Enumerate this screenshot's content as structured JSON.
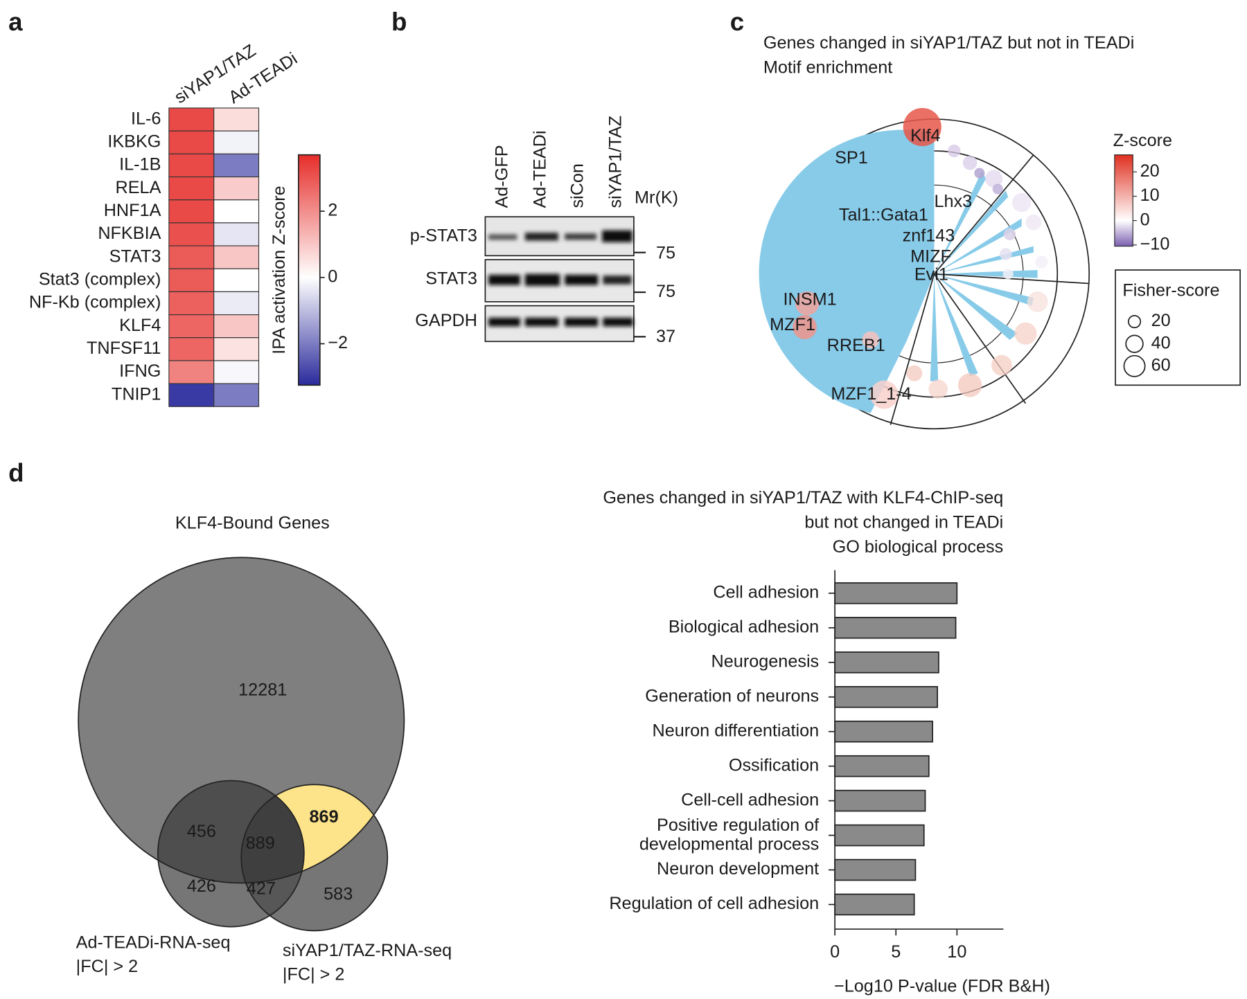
{
  "panel_labels": [
    "a",
    "b",
    "c",
    "d"
  ],
  "chart_data": [
    {
      "type": "heatmap",
      "columns": [
        "siYAP1/TAZ",
        "Ad-TEADi"
      ],
      "rows": [
        "IL-6",
        "IKBKG",
        "IL-1B",
        "RELA",
        "HNF1A",
        "NFKBIA",
        "STAT3",
        "Stat3 (complex)",
        "NF-Kb (complex)",
        "KLF4",
        "TNFSF11",
        "IFNG",
        "TNIP1"
      ],
      "values": [
        [
          3.2,
          0.6
        ],
        [
          3.2,
          -0.2
        ],
        [
          3.2,
          -2.0
        ],
        [
          3.2,
          0.9
        ],
        [
          3.2,
          0.0
        ],
        [
          3.1,
          -0.4
        ],
        [
          2.9,
          1.0
        ],
        [
          2.9,
          0.0
        ],
        [
          2.8,
          -0.3
        ],
        [
          2.7,
          1.0
        ],
        [
          2.7,
          0.5
        ],
        [
          2.2,
          -0.1
        ],
        [
          -3.0,
          -2.0
        ]
      ],
      "colors": [
        "#2a2a9c",
        "#ffffff",
        "#e62e2a"
      ],
      "colorbar_label": "IPA activation Z-score",
      "clim": [
        -3.25,
        3.7
      ],
      "cticks": [
        2,
        0,
        {
          "value": -2,
          "label": "−2"
        }
      ]
    },
    {
      "type": "motif",
      "title": [
        "Genes changed in siYAP1/TAZ but not in TEADi",
        "Motif enrichment"
      ],
      "motifs": [
        {
          "name": "SP1"
        },
        {
          "name": "Klf4",
          "zscore": 22,
          "fisher": 200
        },
        {
          "name": "Lhx3",
          "zscore": -6,
          "fisher": 15
        },
        {
          "name": "Tal1::Gata1",
          "zscore": -5,
          "fisher": 15
        },
        {
          "name": "znf143",
          "zscore": -3,
          "fisher": 20
        },
        {
          "name": "MIZF",
          "zscore": -2,
          "fisher": 20
        },
        {
          "name": "Evi1",
          "zscore": -1,
          "fisher": 15
        },
        {
          "name": "INSM1",
          "zscore": 12,
          "fisher": 78
        },
        {
          "name": "MZF1",
          "zscore": 14,
          "fisher": 80
        },
        {
          "name": "RREB1",
          "zscore": 8,
          "fisher": 40
        },
        {
          "name": "MZF1_1-4",
          "zscore": 6,
          "fisher": 110
        }
      ],
      "colors": [
        "#7b5fb0",
        "#ffffff",
        "#e03020"
      ],
      "zlabel": "Z-score",
      "zlim": [
        -10.5,
        27
      ],
      "zticks": [
        20,
        10,
        0,
        {
          "value": -10,
          "label": "−10"
        }
      ],
      "size_label": "Fisher-score",
      "size_ticks": [
        20,
        40,
        60
      ]
    },
    {
      "type": "barh",
      "title": [
        "Genes changed in siYAP1/TAZ with KLF4-ChIP-seq",
        "but not changed in TEADi",
        "GO biological process"
      ],
      "categories": [
        "Cell adhesion",
        "Biological adhesion",
        "Neurogenesis",
        "Generation of neurons",
        "Neuron differentiation",
        "Ossification",
        "Cell-cell adhesion",
        "Positive regulation of\ndevelopmental process",
        "Neuron development",
        "Regulation of cell adhesion"
      ],
      "values": [
        10.0,
        9.9,
        8.5,
        8.4,
        8.0,
        7.7,
        7.4,
        7.3,
        6.6,
        6.5
      ],
      "color": "#8a8a8a",
      "xlim": [
        0,
        13.8
      ],
      "xticks": [
        0,
        5,
        10
      ],
      "xlabel": "−Log10 P-value (FDR B&H)"
    }
  ],
  "blot": {
    "lanes": [
      "Ad-GFP",
      "Ad-TEADi",
      "siCon",
      "siYAP1/TAZ"
    ],
    "mr_label": "Mr(K)",
    "rows": [
      {
        "name": "p-STAT3",
        "marker": "75"
      },
      {
        "name": "STAT3",
        "marker": "75"
      },
      {
        "name": "GAPDH",
        "marker": "37"
      }
    ]
  },
  "venn": {
    "title": "KLF4-Bound Genes",
    "counts": [
      12281,
      456,
      889,
      869,
      426,
      427,
      583
    ],
    "sets": [
      {
        "name": "Ad-TEADi-RNA-seq",
        "threshold": "|FC| > 2"
      },
      {
        "name": "siYAP1/TAZ-RNA-seq",
        "threshold": "|FC| > 2"
      }
    ]
  }
}
